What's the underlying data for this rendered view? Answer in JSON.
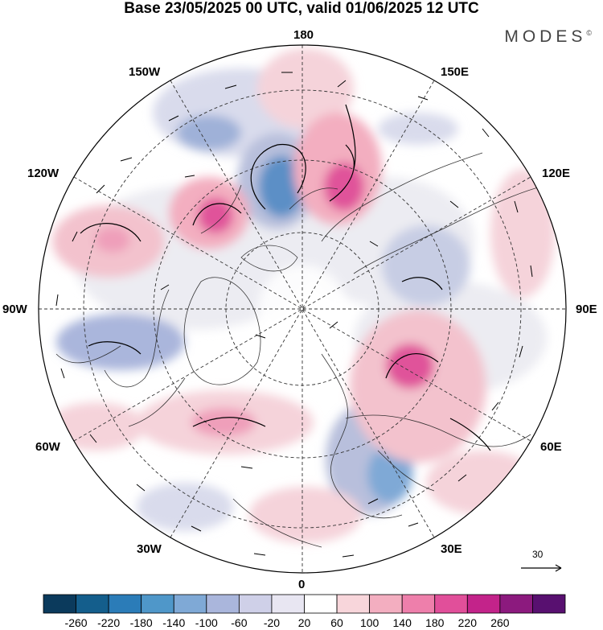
{
  "title": "Base 23/05/2025 00 UTC, valid 01/06/2025 12 UTC",
  "brand": "MODES",
  "brand_mark": "©",
  "longitude_labels": {
    "top": "180",
    "bottom": "0",
    "left": "90W",
    "right": "90E",
    "upper_left_1": "150W",
    "upper_left_2": "120W",
    "upper_right_1": "150E",
    "upper_right_2": "120E",
    "lower_left_1": "60W",
    "lower_left_2": "30W",
    "lower_right_1": "60E",
    "lower_right_2": "30E"
  },
  "reference_vector": {
    "value": "30"
  },
  "colorbar": {
    "labels": [
      "-260",
      "-220",
      "-180",
      "-140",
      "-100",
      "-60",
      "-20",
      "20",
      "60",
      "100",
      "140",
      "180",
      "220",
      "260"
    ],
    "colors": [
      "#0b3a5c",
      "#145e8c",
      "#2b7cb8",
      "#4f97c9",
      "#7fa9d6",
      "#aab6dc",
      "#cfd0e8",
      "#e8e6f2",
      "#ffffff",
      "#f8d6db",
      "#f3aec0",
      "#ee7fab",
      "#e14f9a",
      "#c3238a",
      "#8c1a7e",
      "#581070"
    ]
  },
  "anomaly_colors": {
    "neg_strong": "#1f6aa5",
    "neg_mid": "#5b8fc6",
    "neg_weak": "#b8bfdc",
    "neutral": "#ececf2",
    "pos_weak": "#f5d3da",
    "pos_mid": "#ef9fba",
    "pos_strong": "#e0539a"
  }
}
